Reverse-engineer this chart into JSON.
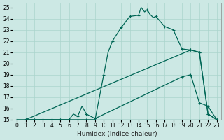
{
  "xlabel": "Humidex (Indice chaleur)",
  "bg_color": "#cce8e4",
  "grid_color": "#aad4cc",
  "line_color": "#006655",
  "xlim": [
    -0.5,
    23.5
  ],
  "ylim": [
    15,
    25.4
  ],
  "xticks": [
    0,
    1,
    2,
    3,
    4,
    5,
    6,
    7,
    8,
    9,
    10,
    11,
    12,
    13,
    14,
    15,
    16,
    17,
    18,
    19,
    20,
    21,
    22,
    23
  ],
  "yticks": [
    15,
    16,
    17,
    18,
    19,
    20,
    21,
    22,
    23,
    24,
    25
  ],
  "curve1_x": [
    1,
    2,
    3,
    4,
    5,
    6,
    7,
    8,
    9,
    10,
    10.5,
    11,
    12,
    13,
    14,
    14.3,
    14.7,
    15,
    15.3,
    15.7,
    16,
    17,
    18,
    19,
    20,
    21,
    22,
    23
  ],
  "curve1_y": [
    15,
    15,
    15,
    15,
    15,
    15,
    15,
    15,
    15,
    19,
    21,
    22,
    23.2,
    24.2,
    24.3,
    25.0,
    24.6,
    24.8,
    24.4,
    24.1,
    24.2,
    23.3,
    23.0,
    21.3,
    21.2,
    21.0,
    15.5,
    15.0
  ],
  "curve1_mx": [
    1,
    2,
    3,
    4,
    5,
    6,
    7,
    8,
    9,
    10,
    11,
    12,
    13,
    14,
    15,
    16,
    17,
    18,
    19,
    20,
    21,
    22,
    23
  ],
  "curve1_my": [
    15,
    15,
    15,
    15,
    15,
    15,
    15,
    15,
    15,
    19,
    22,
    23.2,
    24.2,
    24.3,
    24.8,
    24.2,
    23.3,
    23.0,
    21.3,
    21.2,
    21.0,
    15.5,
    15.0
  ],
  "curve2_x": [
    1,
    20,
    21,
    22,
    23
  ],
  "curve2_y": [
    15,
    21.2,
    21.0,
    15.5,
    15.0
  ],
  "curve2_mx": [
    1,
    20,
    21,
    22,
    23
  ],
  "curve2_my": [
    15,
    21.2,
    21.0,
    15.5,
    15.0
  ],
  "curve3_x": [
    0,
    1,
    2,
    3,
    4,
    5,
    6,
    6.5,
    7,
    7.5,
    8,
    9,
    19,
    20,
    21,
    22,
    23
  ],
  "curve3_y": [
    15,
    15,
    15,
    15,
    15,
    15,
    15,
    15.5,
    15.3,
    16.2,
    15.5,
    15.1,
    18.8,
    19.0,
    16.5,
    16.2,
    15.0
  ],
  "curve3_mx": [
    0,
    1,
    2,
    3,
    4,
    5,
    6,
    7,
    8,
    9,
    19,
    20,
    21,
    22,
    23
  ],
  "curve3_my": [
    15,
    15,
    15,
    15,
    15,
    15,
    15,
    15.3,
    15.5,
    15.1,
    18.8,
    19.0,
    16.5,
    16.2,
    15.0
  ],
  "curve4_x": [
    0,
    23
  ],
  "curve4_y": [
    15,
    15
  ]
}
